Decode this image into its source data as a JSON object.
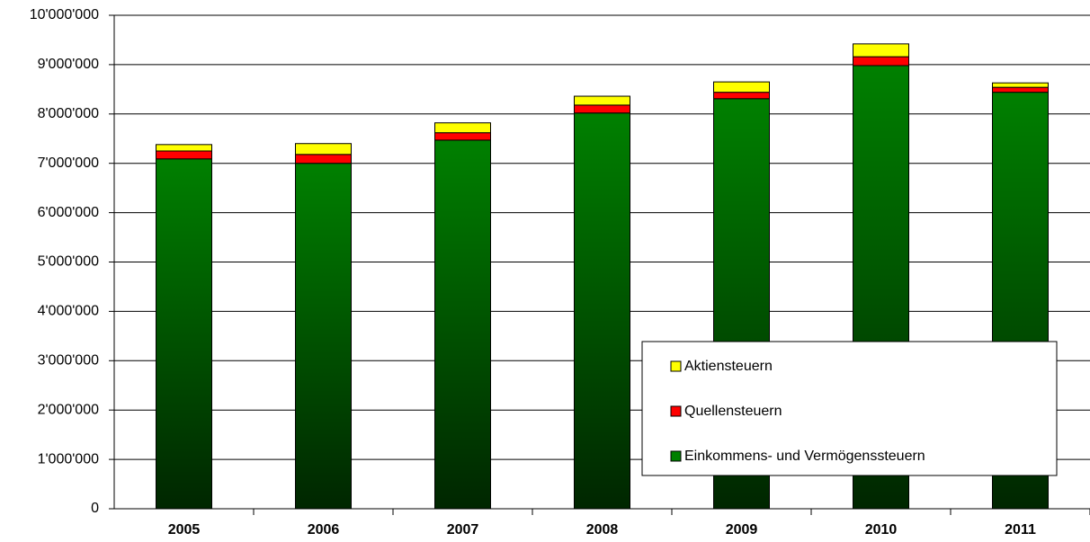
{
  "chart_data": {
    "type": "stacked_bar",
    "categories": [
      "2005",
      "2006",
      "2007",
      "2008",
      "2009",
      "2010",
      "2011"
    ],
    "series": [
      {
        "name": "Einkommens- und Vermögenssteuern",
        "color": "#008000",
        "values": [
          7090000,
          7000000,
          7470000,
          8020000,
          8310000,
          8980000,
          8440000
        ]
      },
      {
        "name": "Quellensteuern",
        "color": "#ff0000",
        "values": [
          160000,
          180000,
          150000,
          160000,
          130000,
          180000,
          100000
        ]
      },
      {
        "name": "Aktiensteuern",
        "color": "#ffff00",
        "values": [
          130000,
          220000,
          200000,
          180000,
          210000,
          260000,
          90000
        ]
      }
    ],
    "ylim": [
      0,
      10000000
    ],
    "yticks": [
      0,
      {
        "value": 1000000,
        "label": "1'000'000"
      },
      {
        "value": 2000000,
        "label": "2'000'000"
      },
      {
        "value": 3000000,
        "label": "3'000'000"
      },
      {
        "value": 4000000,
        "label": "4'000'000"
      },
      {
        "value": 5000000,
        "label": "5'000'000"
      },
      {
        "value": 6000000,
        "label": "6'000'000"
      },
      {
        "value": 7000000,
        "label": "7'000'000"
      },
      {
        "value": 8000000,
        "label": "8'000'000"
      },
      {
        "value": 9000000,
        "label": "9'000'000"
      },
      {
        "value": 10000000,
        "label": "10'000'000"
      }
    ],
    "grid": true,
    "legend": "lower right"
  }
}
